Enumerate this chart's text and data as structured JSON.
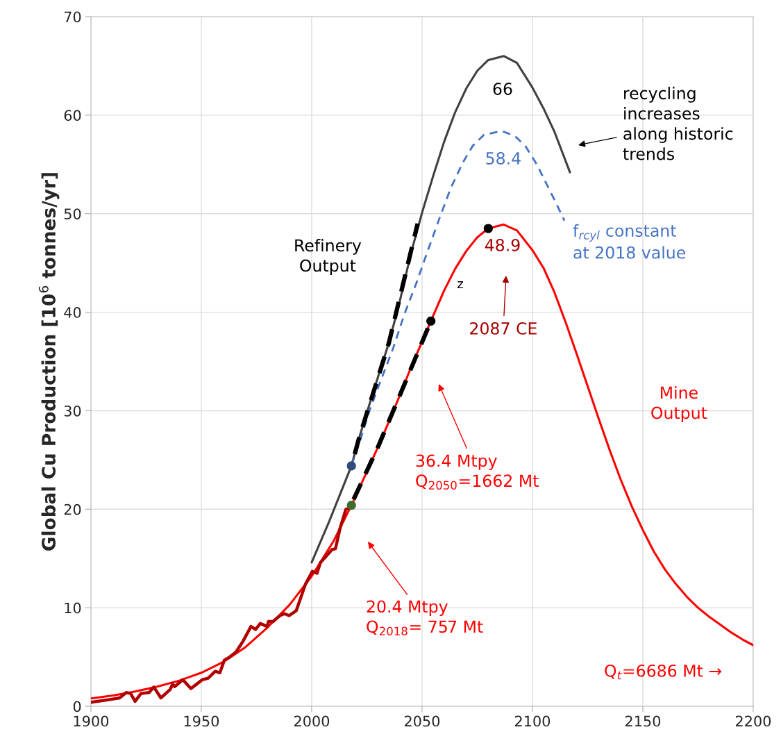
{
  "chart_data": {
    "type": "line",
    "ylabel": "Global Cu Production [10$^{6}$ tonnes/yr]",
    "xlim": [
      1900,
      2200
    ],
    "xticks": [
      1900,
      1950,
      2000,
      2050,
      2100,
      2150,
      2200
    ],
    "ylim": [
      0,
      70
    ],
    "yticks": [
      0,
      10,
      20,
      30,
      40,
      50,
      60,
      70
    ],
    "grid": true,
    "series": [
      {
        "color": "#ff0000",
        "line_style": "solid",
        "x": [
          1900,
          1910,
          1920,
          1930,
          1940,
          1950,
          1960,
          1970,
          1980,
          1990,
          2000,
          2005,
          2010,
          2018,
          2025,
          2030,
          2035,
          2040,
          2045,
          2050,
          2054,
          2060,
          2065,
          2070,
          2075,
          2080,
          2087,
          2093,
          2100,
          2105,
          2110,
          2115,
          2120,
          2125,
          2130,
          2135,
          2140,
          2145,
          2150,
          2155,
          2160,
          2165,
          2170,
          2175,
          2180,
          2185,
          2190,
          2195,
          2200
        ],
        "values": [
          0.8,
          1.1,
          1.5,
          2.0,
          2.6,
          3.4,
          4.5,
          6.0,
          8.0,
          10.3,
          13.2,
          15.0,
          16.8,
          20.4,
          23.8,
          26.3,
          28.9,
          31.6,
          34.4,
          37.0,
          39.1,
          42.2,
          44.4,
          46.2,
          47.6,
          48.5,
          48.9,
          48.3,
          46.3,
          44.5,
          42.0,
          39.0,
          35.8,
          32.5,
          29.2,
          26.0,
          23.0,
          20.3,
          17.9,
          15.7,
          13.9,
          12.4,
          11.1,
          10.0,
          9.1,
          8.3,
          7.5,
          6.8,
          6.2
        ]
      },
      {
        "color": "#b00000",
        "line_style": "solid",
        "x": [
          1900,
          1909,
          1913,
          1916,
          1918,
          1920,
          1922.7,
          1926.4,
          1928.5,
          1931.7,
          1935.9,
          1937,
          1938,
          1941.6,
          1945.3,
          1947.9,
          1950.5,
          1953.1,
          1956.3,
          1958.4,
          1960.5,
          1962.6,
          1965.7,
          1968.9,
          1972.5,
          1974.6,
          1976.7,
          1979.9,
          1980.4,
          1982.5,
          1985.6,
          1987.7,
          1989.8,
          1993,
          1997.2,
          2000.3,
          2002.4,
          2004,
          2007.6,
          2009.2,
          2010.8,
          2012.9,
          2015.5,
          2018.2,
          2019
        ],
        "values": [
          0.4,
          0.7,
          0.85,
          1.4,
          1.3,
          0.5,
          1.3,
          1.4,
          1.95,
          0.85,
          1.7,
          2.25,
          2.0,
          2.7,
          1.8,
          2.25,
          2.7,
          2.85,
          3.55,
          3.4,
          4.7,
          4.95,
          5.5,
          6.6,
          8.1,
          7.8,
          8.4,
          8.1,
          8.6,
          8.6,
          9.2,
          9.4,
          9.2,
          9.7,
          12.4,
          13.7,
          13.5,
          14.6,
          15.5,
          15.9,
          16.0,
          18.1,
          20.0,
          20.2,
          20.6
        ]
      },
      {
        "color": "#404040",
        "line_style": "solid",
        "x": [
          2000,
          2008,
          2018,
          2021.3,
          2025,
          2030,
          2035,
          2040,
          2045,
          2050,
          2055,
          2060,
          2065,
          2070,
          2075,
          2080,
          2087,
          2093,
          2100,
          2105,
          2110,
          2117
        ],
        "values": [
          14.6,
          18.8,
          24.4,
          27.1,
          29.8,
          33.4,
          36.9,
          41.2,
          46.0,
          50.1,
          53.8,
          57.3,
          60.3,
          62.7,
          64.5,
          65.6,
          66.0,
          65.3,
          62.8,
          60.7,
          58.3,
          54.2
        ]
      },
      {
        "color": "#4472c4",
        "line_style": "dashed",
        "x": [
          2018,
          2022,
          2026,
          2030,
          2037,
          2042,
          2047.5,
          2053,
          2058,
          2063,
          2068.5,
          2073,
          2078,
          2086,
          2092,
          2097,
          2102,
          2106,
          2110,
          2114.5
        ],
        "values": [
          24.4,
          27.0,
          29.9,
          32.3,
          36.4,
          39.8,
          43.0,
          46.5,
          49.6,
          52.6,
          55.2,
          56.9,
          58.0,
          58.4,
          57.9,
          56.8,
          55.0,
          53.2,
          51.4,
          49.3
        ]
      },
      {
        "color": "#000000",
        "line_style": "dashed",
        "x": [
          2019.5,
          2021.3,
          2035,
          2048
        ],
        "values": [
          25.6,
          27.1,
          36.9,
          49.0
        ]
      },
      {
        "color": "#000000",
        "line_style": "dashed",
        "x": [
          2019,
          2030,
          2040,
          2054
        ],
        "values": [
          21.0,
          26.3,
          31.6,
          39.1
        ]
      },
      {
        "type": "scatter",
        "marker": "circle",
        "x": [
          2018,
          2018,
          2054,
          2080
        ],
        "values": [
          24.4,
          20.4,
          39.1,
          48.5
        ],
        "colors": [
          "#2f4b7c",
          "#3c6e2c",
          "#000000",
          "#000000"
        ]
      }
    ],
    "annotations": [
      "66",
      "58.4",
      "48.9",
      "Refinery\nOutput",
      "z",
      "2087 CE",
      "recycling\nincreases\nalong historic\ntrends",
      "f$_{rcyl}$ constant\nat 2018 value",
      "Mine\nOutput",
      "36.4 Mtpy\nQ$_{2050}$=1662 Mt",
      "20.4 Mtpy\nQ$_{2018}$= 757 Mt",
      "Q$_{t}$=6686 Mt →"
    ]
  }
}
